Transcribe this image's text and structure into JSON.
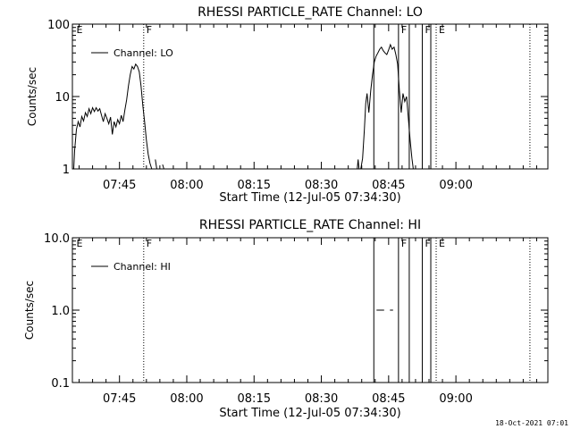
{
  "footer_timestamp": "18-Oct-2021 07:01",
  "time_axis": {
    "start_minutes": 454.5,
    "end_minutes": 560.5,
    "tick_labels": [
      "07:45",
      "08:00",
      "08:15",
      "08:30",
      "08:45",
      "09:00"
    ],
    "tick_minutes": [
      465,
      480,
      495,
      510,
      525,
      540
    ],
    "minor_minutes": [
      456,
      459,
      462,
      468,
      471,
      474,
      477,
      483,
      486,
      489,
      492,
      498,
      501,
      504,
      507,
      513,
      516,
      519,
      522,
      528,
      531,
      534,
      537,
      543,
      546,
      549,
      552,
      555,
      558
    ],
    "xlabel": "Start Time (12-Jul-05 07:34:30)"
  },
  "markers": [
    {
      "minute": 521.7,
      "style": "solid",
      "label": ""
    },
    {
      "minute": 527.2,
      "style": "solid",
      "label": "F"
    },
    {
      "minute": 529.6,
      "style": "solid",
      "label": ""
    },
    {
      "minute": 532.5,
      "style": "solid",
      "label": "F"
    },
    {
      "minute": 534.4,
      "style": "solid",
      "label": ""
    },
    {
      "minute": 470.4,
      "style": "dotted",
      "label": "F"
    },
    {
      "minute": 535.6,
      "style": "dotted",
      "label": "E"
    },
    {
      "minute": 556.5,
      "style": "dotted",
      "label": ""
    },
    {
      "minute": 454.8,
      "style": "none",
      "label": "E"
    }
  ],
  "chart_data": [
    {
      "type": "line",
      "title": "RHESSI PARTICLE_RATE Channel: LO",
      "xlabel": "Start Time (12-Jul-05 07:34:30)",
      "ylabel": "Counts/sec",
      "yscale": "log",
      "ylim": [
        1,
        100
      ],
      "ytick_labels": [
        "1",
        "10",
        "100"
      ],
      "ytick_values": [
        1,
        10,
        100
      ],
      "legend": {
        "position": "top-left",
        "entries": [
          "Channel: LO"
        ]
      },
      "series": [
        {
          "name": "Channel: LO",
          "segments": [
            [
              [
                454.8,
                1.0
              ],
              [
                455.0,
                1.8
              ],
              [
                455.4,
                3.5
              ],
              [
                455.8,
                4.5
              ],
              [
                456.2,
                3.8
              ],
              [
                456.6,
                5.3
              ],
              [
                457.0,
                4.6
              ],
              [
                457.4,
                6.0
              ],
              [
                457.8,
                5.3
              ],
              [
                458.2,
                6.8
              ],
              [
                458.6,
                5.8
              ],
              [
                459.0,
                7.0
              ],
              [
                459.4,
                6.2
              ],
              [
                459.8,
                7.0
              ],
              [
                460.2,
                6.3
              ],
              [
                460.6,
                6.8
              ],
              [
                461.0,
                5.5
              ],
              [
                461.4,
                4.5
              ],
              [
                461.8,
                5.8
              ],
              [
                462.2,
                5.0
              ],
              [
                462.6,
                4.2
              ],
              [
                463.0,
                5.2
              ],
              [
                463.4,
                3.0
              ],
              [
                463.8,
                4.5
              ],
              [
                464.2,
                3.8
              ],
              [
                464.6,
                4.8
              ],
              [
                465.0,
                4.2
              ],
              [
                465.4,
                5.5
              ],
              [
                465.8,
                4.5
              ],
              [
                466.2,
                6.5
              ],
              [
                466.6,
                9.0
              ],
              [
                467.0,
                14.0
              ],
              [
                467.4,
                20.0
              ],
              [
                467.8,
                26.0
              ],
              [
                468.2,
                24.0
              ],
              [
                468.6,
                28.0
              ],
              [
                469.0,
                26.0
              ],
              [
                469.4,
                22.0
              ],
              [
                469.8,
                14.0
              ],
              [
                470.2,
                7.5
              ],
              [
                470.6,
                4.5
              ],
              [
                471.0,
                2.5
              ],
              [
                471.4,
                1.6
              ],
              [
                471.8,
                1.2
              ],
              [
                472.2,
                1.0
              ]
            ],
            [
              [
                473.0,
                1.35
              ],
              [
                473.3,
                1.0
              ]
            ],
            [
              [
                474.6,
                1.15
              ],
              [
                474.9,
                1.0
              ]
            ],
            [
              [
                518.0,
                1.0
              ],
              [
                518.2,
                1.35
              ],
              [
                518.4,
                1.0
              ],
              [
                518.8,
                1.0
              ],
              [
                519.2,
                1.4
              ],
              [
                519.6,
                3.5
              ],
              [
                519.9,
                8.0
              ],
              [
                520.2,
                11.0
              ],
              [
                520.6,
                6.0
              ],
              [
                521.0,
                12.0
              ],
              [
                521.4,
                20.0
              ],
              [
                521.8,
                30.0
              ],
              [
                522.2,
                36.0
              ],
              [
                522.6,
                40.0
              ],
              [
                523.0,
                45.0
              ],
              [
                523.4,
                48.0
              ],
              [
                523.8,
                43.0
              ],
              [
                524.2,
                40.0
              ],
              [
                524.6,
                38.0
              ],
              [
                525.0,
                44.0
              ],
              [
                525.4,
                52.0
              ],
              [
                525.8,
                45.0
              ],
              [
                526.2,
                48.0
              ],
              [
                526.6,
                38.0
              ],
              [
                527.0,
                28.0
              ],
              [
                527.4,
                12.0
              ],
              [
                527.8,
                6.0
              ],
              [
                528.2,
                11.0
              ],
              [
                528.6,
                8.5
              ],
              [
                529.0,
                10.0
              ],
              [
                529.4,
                5.0
              ],
              [
                529.8,
                2.5
              ],
              [
                530.2,
                1.4
              ],
              [
                530.5,
                1.0
              ]
            ]
          ]
        }
      ]
    },
    {
      "type": "line",
      "title": "RHESSI PARTICLE_RATE Channel: HI",
      "xlabel": "Start Time (12-Jul-05 07:34:30)",
      "ylabel": "Counts/sec",
      "yscale": "log",
      "ylim": [
        0.1,
        10
      ],
      "ytick_labels": [
        "0.1",
        "1.0",
        "10.0"
      ],
      "ytick_values": [
        0.1,
        1,
        10
      ],
      "legend": {
        "position": "top-left",
        "entries": [
          "Channel: HI"
        ]
      },
      "series": [
        {
          "name": "Channel: HI",
          "segments": [
            [
              [
                522.3,
                1.0
              ],
              [
                524.0,
                1.0
              ]
            ],
            [
              [
                525.3,
                1.0
              ],
              [
                526.0,
                1.0
              ]
            ]
          ]
        }
      ]
    }
  ]
}
